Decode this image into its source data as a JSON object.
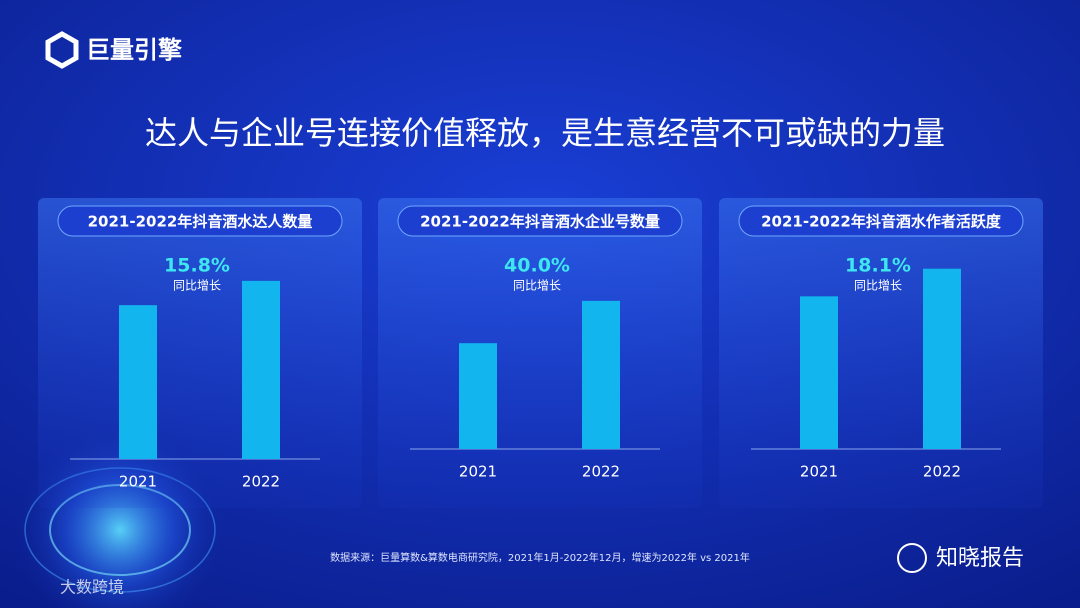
{
  "header": {
    "logo": "巨量引擎",
    "title": "达人与企业号连接价值释放，是生意经营不可或缺的力量"
  },
  "chart_data": [
    {
      "type": "bar",
      "title": "2021-2022年抖音酒水达人数量",
      "categories": [
        "2021",
        "2022"
      ],
      "values": [
        100,
        115.8
      ],
      "color": "#13b5ef",
      "ylim": [
        0,
        130
      ],
      "annotation": "15.8%",
      "annotation_note": "同比增长"
    },
    {
      "type": "bar",
      "title": "2021-2022年抖音酒水企业号数量",
      "categories": [
        "2021",
        "2022"
      ],
      "values": [
        100,
        140
      ],
      "color": "#13b5ef",
      "ylim": [
        0,
        189
      ],
      "annotation": "40.0%",
      "annotation_note": "同比增长"
    },
    {
      "type": "bar",
      "title": "2021-2022年抖音酒水作者活跃度",
      "categories": [
        "2021",
        "2022"
      ],
      "values": [
        100,
        118.1
      ],
      "color": "#13b5ef",
      "ylim": [
        0,
        131
      ],
      "annotation": "18.1%",
      "annotation_note": "同比增长"
    }
  ],
  "source": "数据来源：巨量算数&算数电商研究院，2021年1月-2022年12月，增速为2022年 vs 2021年",
  "brand": "知晓报告",
  "watermark": "大数跨境"
}
